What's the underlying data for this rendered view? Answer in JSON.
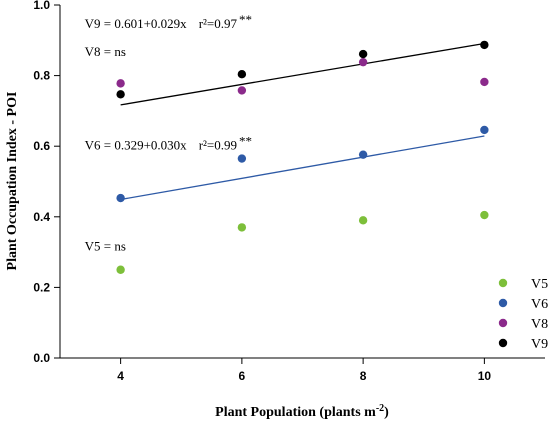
{
  "chart_data": {
    "type": "scatter",
    "xlabel": "Plant Population (plants m",
    "xlabel_sup": "-2",
    "xlabel_end": ")",
    "ylabel": "Plant Occupation Index - POI",
    "xlim": [
      3,
      11
    ],
    "ylim": [
      0.0,
      1.0
    ],
    "xticks": [
      4,
      6,
      8,
      10
    ],
    "yticks": [
      0.0,
      0.2,
      0.4,
      0.6,
      0.8,
      1.0
    ],
    "ytick_labels": [
      "0.0",
      "0.2",
      "0.4",
      "0.6",
      "0.8",
      "1.0"
    ],
    "grid": false,
    "legend_position": "bottom-right",
    "series": [
      {
        "name": "V5",
        "color": "#7dbf3a",
        "x": [
          4,
          6,
          8,
          10
        ],
        "y": [
          0.25,
          0.37,
          0.39,
          0.405
        ]
      },
      {
        "name": "V6",
        "color": "#2e5aa6",
        "x": [
          4,
          6,
          8,
          10
        ],
        "y": [
          0.453,
          0.565,
          0.576,
          0.646
        ]
      },
      {
        "name": "V8",
        "color": "#8b2a8b",
        "x": [
          4,
          6,
          8,
          10
        ],
        "y": [
          0.778,
          0.758,
          0.838,
          0.782
        ]
      },
      {
        "name": "V9",
        "color": "#000000",
        "x": [
          4,
          6,
          8,
          10
        ],
        "y": [
          0.747,
          0.804,
          0.861,
          0.887
        ]
      }
    ],
    "fits": [
      {
        "series": "V9",
        "intercept": 0.601,
        "slope": 0.029,
        "color": "#000000",
        "x_range": [
          4,
          10
        ]
      },
      {
        "series": "V6",
        "intercept": 0.329,
        "slope": 0.03,
        "color": "#2e5aa6",
        "x_range": [
          4,
          10
        ]
      }
    ],
    "annotations": [
      {
        "text": "V9 = 0.601+0.029x",
        "r2": "r²=0.97",
        "stars": "**",
        "x": 4.0,
        "y": 0.935
      },
      {
        "text": "V8 = ns",
        "x": 4.0,
        "y": 0.855
      },
      {
        "text": "V6 = 0.329+0.030x",
        "r2": "r²=0.99",
        "stars": "**",
        "x": 4.0,
        "y": 0.59
      },
      {
        "text": "V5 = ns",
        "x": 4.0,
        "y": 0.305
      }
    ]
  }
}
